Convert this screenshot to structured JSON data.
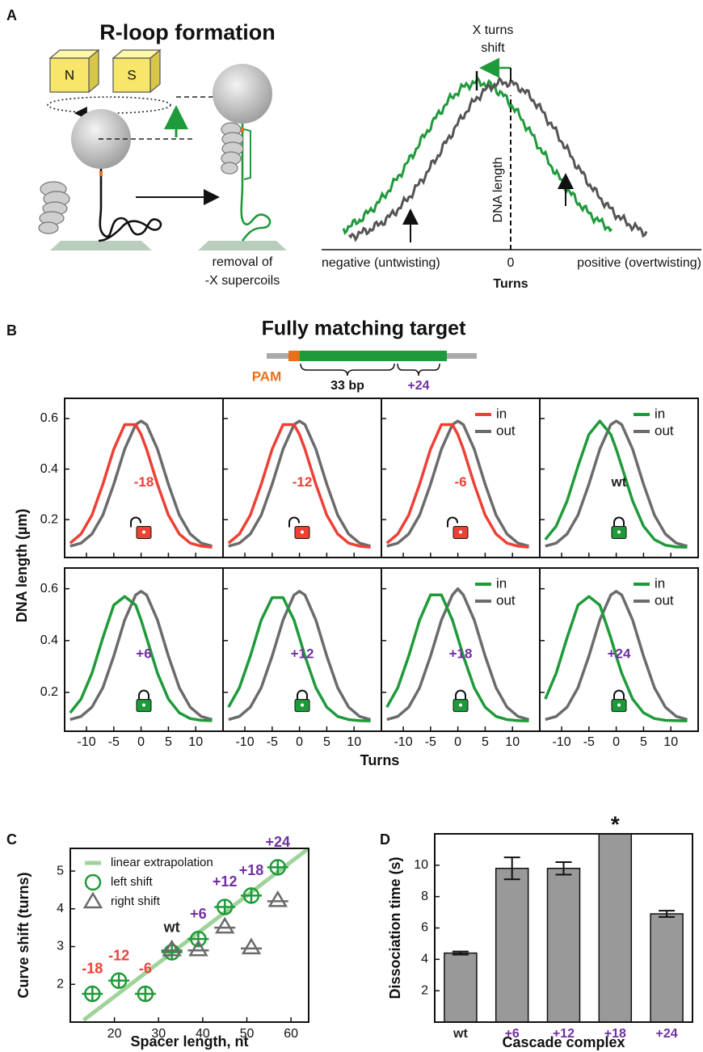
{
  "panel_a": {
    "label": "A",
    "title": "R-loop formation",
    "magnet_n": "N",
    "magnet_s": "S",
    "caption_line1": "removal of",
    "caption_line2": "-X supercoils",
    "shift_label_1": "X turns",
    "shift_label_2": "shift",
    "y_label": "DNA length",
    "x_left": "negative (untwisting)",
    "x_zero": "0",
    "x_right": "positive (overtwisting)",
    "x_title": "Turns"
  },
  "panel_b": {
    "label": "B",
    "title": "Fully matching target",
    "pam": "PAM",
    "spacer": "33 bp",
    "extension": "+24",
    "y_label": "DNA length (µm)",
    "x_label": "Turns"
  },
  "chart_data": [
    {
      "type": "line",
      "annotation": "-18",
      "annotation_color": "#ee4035",
      "locked": false,
      "legend": false,
      "x": [
        -13,
        -11,
        -9,
        -7,
        -5,
        -3,
        -1,
        0,
        1,
        3,
        5,
        7,
        9,
        11,
        13
      ],
      "series": [
        {
          "name": "in",
          "color": "#ee4035",
          "values": [
            0.107,
            0.143,
            0.218,
            0.34,
            0.479,
            0.576,
            0.576,
            0.537,
            0.479,
            0.34,
            0.218,
            0.143,
            0.107,
            0.095,
            0.091
          ]
        },
        {
          "name": "out",
          "color": "#6b6b6b",
          "values": [
            0.095,
            0.107,
            0.143,
            0.218,
            0.34,
            0.479,
            0.576,
            0.59,
            0.576,
            0.479,
            0.34,
            0.218,
            0.143,
            0.107,
            0.095
          ]
        }
      ],
      "xlim": [
        -14,
        15
      ],
      "ylim": [
        0.05,
        0.68
      ],
      "xticks": [
        -10,
        -5,
        0,
        5,
        10
      ],
      "yticks": [
        0.2,
        0.4,
        0.6
      ]
    },
    {
      "type": "line",
      "annotation": "-12",
      "annotation_color": "#ee4035",
      "locked": false,
      "legend": false,
      "x": [
        -13,
        -11,
        -9,
        -7,
        -5,
        -3,
        -1,
        0,
        1,
        3,
        5,
        7,
        9,
        11,
        13
      ],
      "series": [
        {
          "name": "in",
          "color": "#ee4035",
          "values": [
            0.107,
            0.143,
            0.218,
            0.34,
            0.479,
            0.576,
            0.576,
            0.537,
            0.479,
            0.34,
            0.218,
            0.143,
            0.107,
            0.095,
            0.091
          ]
        },
        {
          "name": "out",
          "color": "#6b6b6b",
          "values": [
            0.095,
            0.107,
            0.143,
            0.218,
            0.34,
            0.479,
            0.576,
            0.59,
            0.576,
            0.479,
            0.34,
            0.218,
            0.143,
            0.107,
            0.095
          ]
        }
      ],
      "xlim": [
        -14,
        15
      ],
      "ylim": [
        0.05,
        0.68
      ],
      "xticks": [
        -10,
        -5,
        0,
        5,
        10
      ],
      "yticks": [
        0.2,
        0.4,
        0.6
      ]
    },
    {
      "type": "line",
      "annotation": "-6",
      "annotation_color": "#ee4035",
      "locked": false,
      "legend": true,
      "x": [
        -13,
        -11,
        -9,
        -7,
        -5,
        -3,
        -1,
        0,
        1,
        3,
        5,
        7,
        9,
        11,
        13
      ],
      "series": [
        {
          "name": "in",
          "color": "#ee4035",
          "values": [
            0.107,
            0.143,
            0.218,
            0.34,
            0.479,
            0.576,
            0.576,
            0.537,
            0.479,
            0.34,
            0.218,
            0.143,
            0.107,
            0.095,
            0.091
          ]
        },
        {
          "name": "out",
          "color": "#6b6b6b",
          "values": [
            0.095,
            0.107,
            0.143,
            0.218,
            0.34,
            0.479,
            0.576,
            0.59,
            0.576,
            0.479,
            0.34,
            0.218,
            0.143,
            0.107,
            0.095
          ]
        }
      ],
      "xlim": [
        -14,
        15
      ],
      "ylim": [
        0.05,
        0.68
      ],
      "xticks": [
        -10,
        -5,
        0,
        5,
        10
      ],
      "yticks": [
        0.2,
        0.4,
        0.6
      ]
    },
    {
      "type": "line",
      "annotation": "wt",
      "annotation_color": "#222222",
      "locked": true,
      "legend": true,
      "x": [
        -13,
        -11,
        -9,
        -7,
        -5,
        -3,
        -1,
        0,
        1,
        3,
        5,
        7,
        9,
        11,
        13
      ],
      "series": [
        {
          "name": "in",
          "color": "#1f9a3a",
          "values": [
            0.121,
            0.174,
            0.274,
            0.411,
            0.537,
            0.59,
            0.537,
            0.479,
            0.411,
            0.274,
            0.174,
            0.121,
            0.099,
            0.092,
            0.091
          ]
        },
        {
          "name": "out",
          "color": "#6b6b6b",
          "values": [
            0.095,
            0.107,
            0.143,
            0.218,
            0.34,
            0.479,
            0.576,
            0.59,
            0.576,
            0.479,
            0.34,
            0.218,
            0.143,
            0.107,
            0.095
          ]
        }
      ],
      "xlim": [
        -14,
        15
      ],
      "ylim": [
        0.05,
        0.68
      ],
      "xticks": [
        -10,
        -5,
        0,
        5,
        10
      ],
      "yticks": [
        0.2,
        0.4,
        0.6
      ]
    },
    {
      "type": "line",
      "annotation": "+6",
      "annotation_color": "#7030a0",
      "locked": true,
      "legend": false,
      "x": [
        -13,
        -11,
        -9,
        -7,
        -5,
        -3,
        -1,
        0,
        1,
        3,
        5,
        7,
        9,
        11,
        13
      ],
      "series": [
        {
          "name": "in",
          "color": "#1f9a3a",
          "values": [
            0.121,
            0.174,
            0.274,
            0.411,
            0.537,
            0.57,
            0.537,
            0.479,
            0.411,
            0.274,
            0.174,
            0.121,
            0.099,
            0.092,
            0.091
          ]
        },
        {
          "name": "out",
          "color": "#6b6b6b",
          "values": [
            0.095,
            0.107,
            0.143,
            0.218,
            0.34,
            0.479,
            0.576,
            0.59,
            0.576,
            0.479,
            0.34,
            0.218,
            0.143,
            0.107,
            0.095
          ]
        }
      ],
      "xlim": [
        -14,
        15
      ],
      "ylim": [
        0.05,
        0.68
      ],
      "xticks": [
        -10,
        -5,
        0,
        5,
        10
      ],
      "yticks": [
        0.2,
        0.4,
        0.6
      ]
    },
    {
      "type": "line",
      "annotation": "+12",
      "annotation_color": "#7030a0",
      "locked": true,
      "legend": false,
      "x": [
        -13,
        -11,
        -9,
        -7,
        -5,
        -3,
        -1,
        0,
        1,
        3,
        5,
        7,
        9,
        11,
        13
      ],
      "series": [
        {
          "name": "in",
          "color": "#1f9a3a",
          "values": [
            0.143,
            0.218,
            0.34,
            0.479,
            0.566,
            0.566,
            0.479,
            0.411,
            0.34,
            0.218,
            0.143,
            0.107,
            0.095,
            0.091,
            0.09
          ]
        },
        {
          "name": "out",
          "color": "#6b6b6b",
          "values": [
            0.095,
            0.107,
            0.143,
            0.218,
            0.34,
            0.479,
            0.576,
            0.59,
            0.576,
            0.479,
            0.34,
            0.218,
            0.143,
            0.107,
            0.095
          ]
        }
      ],
      "xlim": [
        -14,
        15
      ],
      "ylim": [
        0.05,
        0.68
      ],
      "xticks": [
        -10,
        -5,
        0,
        5,
        10
      ],
      "yticks": [
        0.2,
        0.4,
        0.6
      ]
    },
    {
      "type": "line",
      "annotation": "+18",
      "annotation_color": "#7030a0",
      "locked": true,
      "legend": true,
      "x": [
        -13,
        -11,
        -9,
        -7,
        -5,
        -3,
        -1,
        0,
        1,
        3,
        5,
        7,
        9,
        11,
        13
      ],
      "series": [
        {
          "name": "in",
          "color": "#1f9a3a",
          "values": [
            0.143,
            0.218,
            0.34,
            0.479,
            0.576,
            0.576,
            0.479,
            0.411,
            0.34,
            0.218,
            0.143,
            0.107,
            0.095,
            0.091,
            0.09
          ]
        },
        {
          "name": "out",
          "color": "#6b6b6b",
          "values": [
            0.095,
            0.107,
            0.143,
            0.218,
            0.34,
            0.479,
            0.576,
            0.6,
            0.576,
            0.479,
            0.34,
            0.218,
            0.143,
            0.107,
            0.095
          ]
        }
      ],
      "xlim": [
        -14,
        15
      ],
      "ylim": [
        0.05,
        0.68
      ],
      "xticks": [
        -10,
        -5,
        0,
        5,
        10
      ],
      "yticks": [
        0.2,
        0.4,
        0.6
      ]
    },
    {
      "type": "line",
      "annotation": "+24",
      "annotation_color": "#7030a0",
      "locked": true,
      "legend": true,
      "x": [
        -13,
        -11,
        -9,
        -7,
        -5,
        -3,
        -1,
        0,
        1,
        3,
        5,
        7,
        9,
        11,
        13
      ],
      "series": [
        {
          "name": "in",
          "color": "#1f9a3a",
          "values": [
            0.174,
            0.274,
            0.411,
            0.537,
            0.57,
            0.537,
            0.411,
            0.34,
            0.274,
            0.174,
            0.121,
            0.099,
            0.092,
            0.091,
            0.09
          ]
        },
        {
          "name": "out",
          "color": "#6b6b6b",
          "values": [
            0.095,
            0.107,
            0.143,
            0.218,
            0.34,
            0.479,
            0.576,
            0.59,
            0.576,
            0.479,
            0.34,
            0.218,
            0.143,
            0.107,
            0.095
          ]
        }
      ],
      "xlim": [
        -14,
        15
      ],
      "ylim": [
        0.05,
        0.68
      ],
      "xticks": [
        -10,
        -5,
        0,
        5,
        10
      ],
      "yticks": [
        0.2,
        0.4,
        0.6
      ]
    },
    {
      "type": "scatter",
      "panel": "C",
      "xlabel": "Spacer length, nt",
      "ylabel": "Curve shift (turns)",
      "xlim": [
        10,
        64
      ],
      "ylim": [
        1,
        5.6
      ],
      "xticks": [
        20,
        30,
        40,
        50,
        60
      ],
      "yticks": [
        2,
        3,
        4,
        5
      ],
      "series": [
        {
          "name": "linear extrapolation",
          "color": "#9fd39a",
          "marker": "line",
          "x": [
            13,
            64
          ],
          "values": [
            1.05,
            5.6
          ]
        },
        {
          "name": "left shift",
          "color": "#1f9a3a",
          "marker": "circle",
          "x": [
            15,
            21,
            27,
            33,
            39,
            45,
            51,
            57
          ],
          "values": [
            1.75,
            2.1,
            1.75,
            2.85,
            3.2,
            4.05,
            4.35,
            5.1
          ]
        },
        {
          "name": "right shift",
          "color": "#6b6b6b",
          "marker": "triangle",
          "x": [
            33,
            39,
            45,
            51,
            57
          ],
          "values": [
            2.9,
            2.9,
            3.5,
            2.95,
            4.2
          ]
        }
      ],
      "point_labels": [
        "-18",
        "-12",
        "-6",
        "wt",
        "+6",
        "+12",
        "+18",
        "+24"
      ],
      "point_label_colors": [
        "#ee4035",
        "#ee4035",
        "#ee4035",
        "#222222",
        "#7030a0",
        "#7030a0",
        "#7030a0",
        "#7030a0"
      ]
    },
    {
      "type": "bar",
      "panel": "D",
      "xlabel": "Cascade complex",
      "ylabel": "Dissociation time (s)",
      "categories": [
        "wt",
        "+6",
        "+12",
        "+18",
        "+24"
      ],
      "category_colors": [
        "#222222",
        "#7030a0",
        "#7030a0",
        "#7030a0",
        "#7030a0"
      ],
      "values": [
        4.4,
        9.8,
        9.8,
        12,
        6.9
      ],
      "errors": [
        0.1,
        0.7,
        0.4,
        null,
        0.2
      ],
      "annotations": [
        null,
        null,
        null,
        "*",
        null
      ],
      "color": "#999999",
      "ylim": [
        0,
        12
      ],
      "yticks": [
        2,
        4,
        6,
        8,
        10
      ]
    }
  ]
}
